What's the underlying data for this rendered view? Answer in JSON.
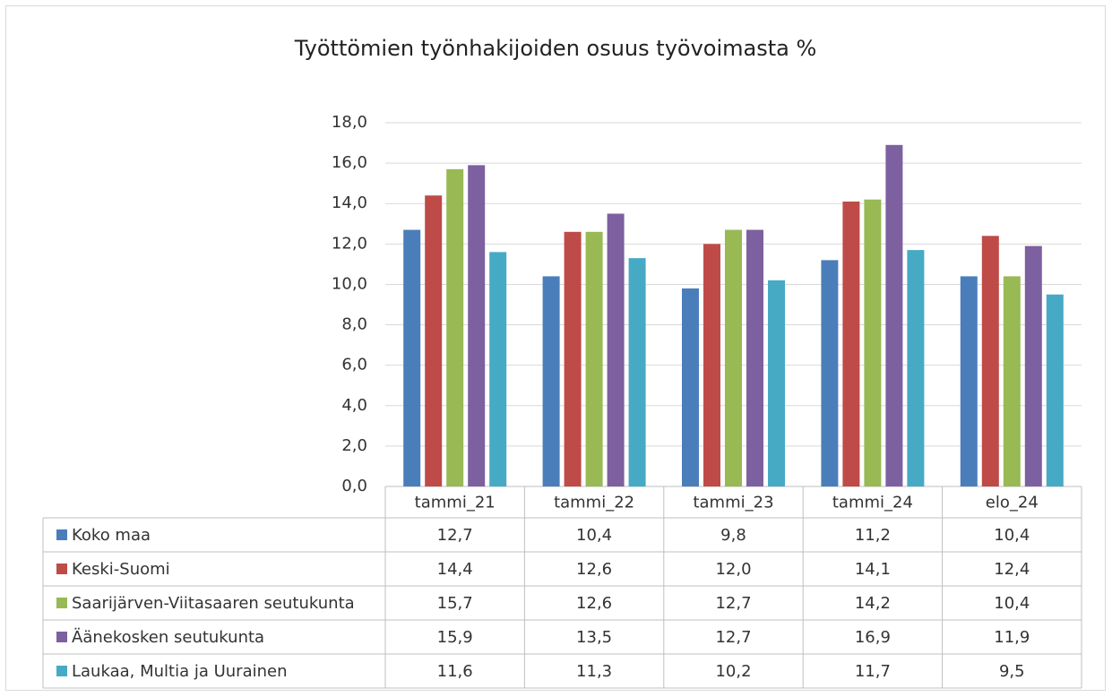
{
  "chart_data": {
    "type": "bar",
    "title": "Työttömien työnhakijoiden osuus työvoimasta %",
    "categories": [
      "tammi_21",
      "tammi_22",
      "tammi_23",
      "tammi_24",
      "elo_24"
    ],
    "series": [
      {
        "name": "Koko maa",
        "color": "#4a7ebb",
        "values": [
          12.7,
          10.4,
          9.8,
          11.2,
          10.4
        ],
        "value_labels": [
          "12,7",
          "10,4",
          "9,8",
          "11,2",
          "10,4"
        ]
      },
      {
        "name": "Keski-Suomi",
        "color": "#be4b48",
        "values": [
          14.4,
          12.6,
          12.0,
          14.1,
          12.4
        ],
        "value_labels": [
          "14,4",
          "12,6",
          "12,0",
          "14,1",
          "12,4"
        ]
      },
      {
        "name": "Saarijärven-Viitasaaren seutukunta",
        "color": "#98b954",
        "values": [
          15.7,
          12.6,
          12.7,
          14.2,
          10.4
        ],
        "value_labels": [
          "15,7",
          "12,6",
          "12,7",
          "14,2",
          "10,4"
        ]
      },
      {
        "name": "Äänekosken seutukunta",
        "color": "#7d60a0",
        "values": [
          15.9,
          13.5,
          12.7,
          16.9,
          11.9
        ],
        "value_labels": [
          "15,9",
          "13,5",
          "12,7",
          "16,9",
          "11,9"
        ]
      },
      {
        "name": "Laukaa, Multia ja Uurainen",
        "color": "#46aac5",
        "values": [
          11.6,
          11.3,
          10.2,
          11.7,
          9.5
        ],
        "value_labels": [
          "11,6",
          "11,3",
          "10,2",
          "11,7",
          "9,5"
        ]
      }
    ],
    "ylim": [
      0,
      18
    ],
    "yticks": [
      {
        "value": 0,
        "label": "0,0"
      },
      {
        "value": 2,
        "label": "2,0"
      },
      {
        "value": 4,
        "label": "4,0"
      },
      {
        "value": 6,
        "label": "6,0"
      },
      {
        "value": 8,
        "label": "8,0"
      },
      {
        "value": 10,
        "label": "10,0"
      },
      {
        "value": 12,
        "label": "12,0"
      },
      {
        "value": 14,
        "label": "14,0"
      },
      {
        "value": 16,
        "label": "16,0"
      },
      {
        "value": 18,
        "label": "18,0"
      }
    ],
    "grid": true
  }
}
